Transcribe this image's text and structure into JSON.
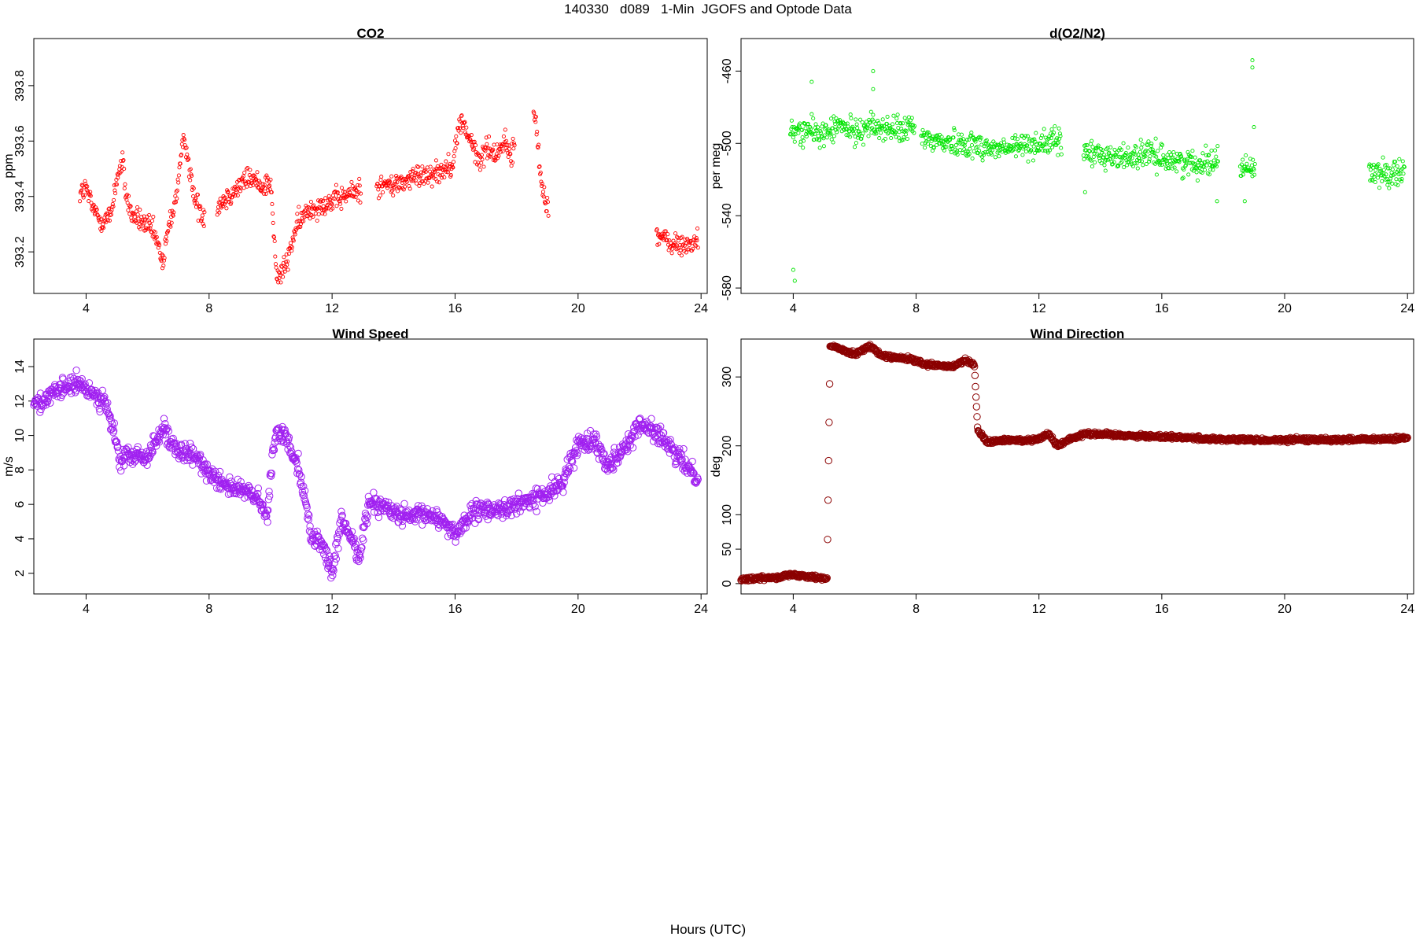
{
  "figure": {
    "title": "140330   d089   1-Min  JGOFS and Optode Data",
    "xlabel": "Hours (UTC)"
  },
  "chart_data": [
    {
      "type": "scatter",
      "title": "CO2",
      "ylabel": "ppm",
      "color": "#ff0000",
      "marker": "small-circle",
      "xlim": [
        2.3,
        24.2
      ],
      "ylim": [
        393.05,
        393.97
      ],
      "xticks": [
        4,
        8,
        12,
        16,
        20,
        24
      ],
      "yticks": [
        393.2,
        393.4,
        393.6,
        393.8
      ],
      "anchors_x": [
        3.8,
        4.0,
        4.2,
        4.5,
        4.8,
        5.0,
        5.2,
        5.3,
        5.5,
        5.8,
        6.2,
        6.5,
        6.7,
        6.9,
        7.2,
        7.5,
        7.8,
        8.3,
        8.8,
        9.3,
        9.7,
        10.0,
        10.2,
        10.5,
        10.8,
        11.2,
        11.6,
        12.0,
        12.4,
        12.8,
        13.5,
        14.0,
        14.5,
        15.0,
        15.5,
        15.9,
        16.2,
        16.5,
        16.8,
        17.0,
        17.3,
        17.6,
        17.8,
        18.6,
        18.8,
        19.0,
        22.6,
        23.0,
        23.4,
        23.9
      ],
      "anchors_y": [
        393.41,
        393.43,
        393.36,
        393.31,
        393.33,
        393.47,
        393.52,
        393.4,
        393.33,
        393.31,
        393.27,
        393.16,
        393.3,
        393.38,
        393.62,
        393.4,
        393.33,
        393.37,
        393.42,
        393.47,
        393.44,
        393.45,
        393.1,
        393.15,
        393.28,
        393.35,
        393.37,
        393.38,
        393.4,
        393.42,
        393.44,
        393.44,
        393.46,
        393.48,
        393.49,
        393.52,
        393.68,
        393.6,
        393.52,
        393.58,
        393.55,
        393.6,
        393.55,
        393.7,
        393.45,
        393.37,
        393.26,
        393.23,
        393.22,
        393.24
      ],
      "gaps": [
        [
          7.85,
          8.25
        ],
        [
          12.95,
          13.45
        ],
        [
          17.95,
          18.55
        ],
        [
          19.05,
          22.55
        ]
      ],
      "noise": 0.04
    },
    {
      "type": "scatter",
      "title": "d(O2/N2)",
      "ylabel": "per meg",
      "color": "#00e400",
      "marker": "small-circle",
      "xlim": [
        2.3,
        24.2
      ],
      "ylim": [
        -583,
        -442
      ],
      "xticks": [
        4,
        8,
        12,
        16,
        20,
        24
      ],
      "yticks": [
        -460,
        -500,
        -540,
        -580
      ],
      "anchors_x": [
        3.9,
        4.5,
        5.0,
        5.5,
        6.0,
        6.5,
        7.0,
        7.5,
        7.9,
        8.2,
        8.8,
        9.5,
        10.0,
        10.5,
        11.0,
        11.5,
        12.0,
        12.6,
        13.5,
        14.0,
        14.5,
        15.0,
        15.5,
        16.0,
        16.5,
        17.0,
        17.5,
        17.8,
        18.6,
        18.9,
        22.8,
        23.2,
        23.6,
        23.9
      ],
      "anchors_y": [
        -494,
        -493,
        -495,
        -490,
        -494,
        -490,
        -492,
        -493,
        -491,
        -497,
        -499,
        -500,
        -501,
        -503,
        -503,
        -501,
        -500,
        -499,
        -505,
        -506,
        -508,
        -507,
        -506,
        -508,
        -510,
        -511,
        -510,
        -509,
        -513,
        -514,
        -515,
        -517,
        -516,
        -513
      ],
      "gaps": [
        [
          7.95,
          8.15
        ],
        [
          12.75,
          13.45
        ],
        [
          17.85,
          18.55
        ],
        [
          19.05,
          22.75
        ]
      ],
      "noise": 7,
      "outliers": [
        [
          4.0,
          -570
        ],
        [
          4.05,
          -576
        ],
        [
          4.6,
          -466
        ],
        [
          6.6,
          -470
        ],
        [
          6.6,
          -460
        ],
        [
          18.95,
          -454
        ],
        [
          18.95,
          -458
        ],
        [
          19.0,
          -491
        ],
        [
          13.5,
          -527
        ],
        [
          17.8,
          -532
        ],
        [
          18.7,
          -532
        ]
      ]
    },
    {
      "type": "scatter",
      "title": "Wind Speed",
      "ylabel": "m/s",
      "color": "#a020f0",
      "marker": "open-circle",
      "xlim": [
        2.3,
        24.2
      ],
      "ylim": [
        0.8,
        15.6
      ],
      "xticks": [
        4,
        8,
        12,
        16,
        20,
        24
      ],
      "yticks": [
        2,
        4,
        6,
        8,
        10,
        12,
        14
      ],
      "anchors_x": [
        2.3,
        2.8,
        3.3,
        3.7,
        4.2,
        4.6,
        4.9,
        5.1,
        5.3,
        5.6,
        6.0,
        6.2,
        6.5,
        6.7,
        7.0,
        7.5,
        8.0,
        8.5,
        9.0,
        9.5,
        9.9,
        10.0,
        10.2,
        10.5,
        10.9,
        11.1,
        11.3,
        11.7,
        12.0,
        12.3,
        12.6,
        12.9,
        13.2,
        13.6,
        14.0,
        14.5,
        15.0,
        15.5,
        16.0,
        16.3,
        16.7,
        17.2,
        17.8,
        18.5,
        19.0,
        19.5,
        20.0,
        20.5,
        21.0,
        21.5,
        22.0,
        22.5,
        23.0,
        23.5,
        23.9
      ],
      "anchors_y": [
        11.8,
        12.2,
        12.8,
        13.0,
        12.5,
        12.0,
        10.2,
        8.5,
        8.8,
        8.8,
        8.7,
        9.5,
        10.5,
        9.6,
        9.0,
        8.8,
        7.9,
        7.2,
        6.8,
        6.5,
        5.2,
        7.8,
        10.3,
        9.9,
        8.3,
        6.6,
        4.2,
        3.7,
        1.9,
        5.0,
        4.2,
        3.0,
        6.2,
        6.0,
        5.5,
        5.2,
        5.4,
        5.2,
        4.3,
        5.0,
        5.6,
        5.7,
        5.8,
        6.3,
        6.6,
        7.3,
        9.5,
        9.8,
        8.3,
        9.3,
        10.6,
        10.3,
        9.2,
        8.3,
        7.6
      ],
      "gaps": [],
      "noise": 0.55
    },
    {
      "type": "scatter",
      "title": "Wind Direction",
      "ylabel": "deg",
      "color": "#8b0000",
      "marker": "open-circle",
      "xlim": [
        2.3,
        24.2
      ],
      "ylim": [
        -15,
        355
      ],
      "xticks": [
        4,
        8,
        12,
        16,
        20,
        24
      ],
      "yticks": [
        0,
        50,
        100,
        200,
        300
      ],
      "anchors_x": [
        2.3,
        3.0,
        3.5,
        4.0,
        4.5,
        5.1,
        5.2,
        5.6,
        6.0,
        6.5,
        6.9,
        7.3,
        7.8,
        8.3,
        8.8,
        9.2,
        9.6,
        9.9,
        10.0,
        10.3,
        10.8,
        11.5,
        12.0,
        12.3,
        12.6,
        13.0,
        13.5,
        14.5,
        15.5,
        16.5,
        17.5,
        18.5,
        19.5,
        20.5,
        21.5,
        22.5,
        23.5,
        24.0
      ],
      "anchors_y": [
        6,
        8,
        10,
        13,
        11,
        7,
        345,
        340,
        333,
        345,
        330,
        328,
        326,
        318,
        316,
        315,
        324,
        317,
        225,
        205,
        208,
        208,
        210,
        218,
        200,
        210,
        218,
        216,
        214,
        213,
        210,
        209,
        208,
        209,
        209,
        209,
        210,
        211
      ],
      "gaps": [],
      "noise": 3
    }
  ]
}
